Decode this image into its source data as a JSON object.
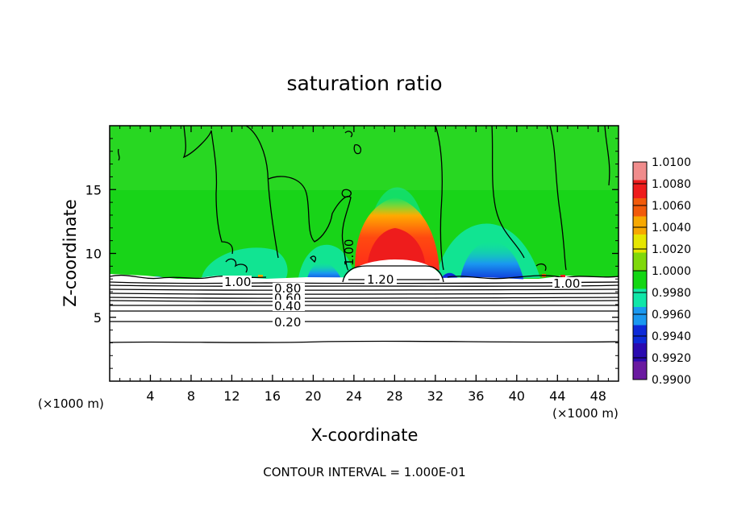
{
  "chart_data": {
    "type": "heatmap",
    "title": "saturation ratio",
    "xlabel": "X-coordinate",
    "ylabel": "Z-coordinate",
    "x_unit_label_left": "(×1000 m)",
    "x_unit_label_right": "(×1000 m)",
    "xlim": [
      0,
      50
    ],
    "ylim": [
      0,
      20
    ],
    "x_ticks": [
      4,
      8,
      12,
      16,
      20,
      24,
      28,
      32,
      36,
      40,
      44,
      48
    ],
    "y_ticks": [
      5,
      10,
      15
    ],
    "colorbar": {
      "labels": [
        "1.0100",
        "1.0080",
        "1.0060",
        "1.0040",
        "1.0020",
        "1.0000",
        "0.9980",
        "0.9960",
        "0.9940",
        "0.9920",
        "0.9900"
      ],
      "colors": [
        "#f08c8c",
        "#ee1c1c",
        "#f25a0a",
        "#f7a800",
        "#e6e600",
        "#7fd80a",
        "#13d613",
        "#10e6a8",
        "#1a98f0",
        "#0d2ad8",
        "#2a0ab0",
        "#6a1aa0"
      ]
    },
    "contour_labels": [
      "1.00",
      "1.20",
      "1.00",
      "1.00",
      "0.80",
      "0.60",
      "0.40",
      "0.20"
    ],
    "footer": "CONTOUR INTERVAL = 1.000E-01"
  }
}
